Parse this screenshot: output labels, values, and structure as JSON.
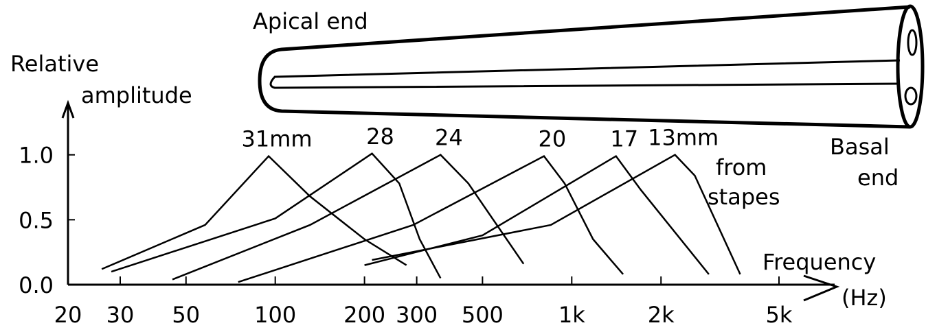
{
  "chart_data": {
    "type": "line",
    "x_scale": "log",
    "title": "Apical end",
    "y_label": [
      "Relative",
      "amplitude"
    ],
    "x_label": [
      "Frequency",
      "(Hz)"
    ],
    "basal_label": [
      "Basal",
      "end"
    ],
    "distance_note": [
      "from",
      "stapes"
    ],
    "color": "#000000",
    "xlim": [
      20,
      7500
    ],
    "ylim": [
      0,
      1.4
    ],
    "xticks": [
      20,
      30,
      50,
      100,
      200,
      300,
      500,
      {
        "value": 1000,
        "label": "1k"
      },
      {
        "value": 2000,
        "label": "2k"
      },
      {
        "value": 5000,
        "label": "5k"
      }
    ],
    "yticks": [
      {
        "value": 0,
        "label": "0.0"
      },
      {
        "value": 0.5,
        "label": "0.5"
      },
      {
        "value": 1.0,
        "label": "1.0"
      }
    ],
    "series": [
      {
        "name": "31mm",
        "x": [
          26,
          58,
          95,
          131,
          200,
          277
        ],
        "values": [
          0.12,
          0.46,
          0.99,
          0.68,
          0.35,
          0.15
        ]
      },
      {
        "name": "28",
        "x": [
          28,
          100,
          212,
          262,
          307,
          361
        ],
        "values": [
          0.1,
          0.51,
          1.01,
          0.78,
          0.35,
          0.05
        ]
      },
      {
        "name": "24",
        "x": [
          45,
          131,
          361,
          448,
          688
        ],
        "values": [
          0.04,
          0.46,
          1.0,
          0.78,
          0.16
        ]
      },
      {
        "name": "20",
        "x": [
          75,
          292,
          806,
          946,
          1180,
          1490
        ],
        "values": [
          0.02,
          0.46,
          0.99,
          0.78,
          0.35,
          0.08
        ]
      },
      {
        "name": "17",
        "x": [
          200,
          500,
          1410,
          1710,
          2900
        ],
        "values": [
          0.15,
          0.38,
          0.99,
          0.73,
          0.08
        ]
      },
      {
        "name": "13mm",
        "x": [
          212,
          850,
          2230,
          2600,
          3700
        ],
        "values": [
          0.19,
          0.46,
          1.0,
          0.84,
          0.08
        ]
      }
    ]
  }
}
